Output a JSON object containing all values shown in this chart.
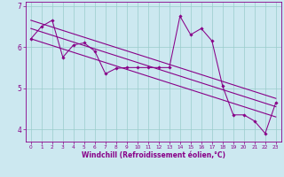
{
  "xlabel": "Windchill (Refroidissement éolien,°C)",
  "bg_color": "#cce8f0",
  "line_color": "#880088",
  "grid_color": "#99cccc",
  "xlim": [
    -0.5,
    23.5
  ],
  "ylim": [
    3.7,
    7.1
  ],
  "yticks": [
    4,
    5,
    6,
    7
  ],
  "ytick_labels": [
    "4",
    "5",
    "6",
    "7"
  ],
  "xticks": [
    0,
    1,
    2,
    3,
    4,
    5,
    6,
    7,
    8,
    9,
    10,
    11,
    12,
    13,
    14,
    15,
    16,
    17,
    18,
    19,
    20,
    21,
    22,
    23
  ],
  "data_x": [
    0,
    1,
    2,
    3,
    4,
    5,
    6,
    7,
    8,
    9,
    10,
    11,
    12,
    13,
    14,
    15,
    16,
    17,
    18,
    19,
    20,
    21,
    22,
    23
  ],
  "data_y": [
    6.2,
    6.5,
    6.65,
    5.75,
    6.05,
    6.1,
    5.9,
    5.35,
    5.48,
    5.5,
    5.5,
    5.5,
    5.5,
    5.5,
    6.75,
    6.3,
    6.45,
    6.15,
    5.05,
    4.35,
    4.35,
    4.2,
    3.9,
    4.65
  ],
  "reg_upper_start": 6.65,
  "reg_upper_end": 4.75,
  "reg_mid_start": 6.45,
  "reg_mid_end": 4.55,
  "reg_lower_start": 6.2,
  "reg_lower_end": 4.3
}
